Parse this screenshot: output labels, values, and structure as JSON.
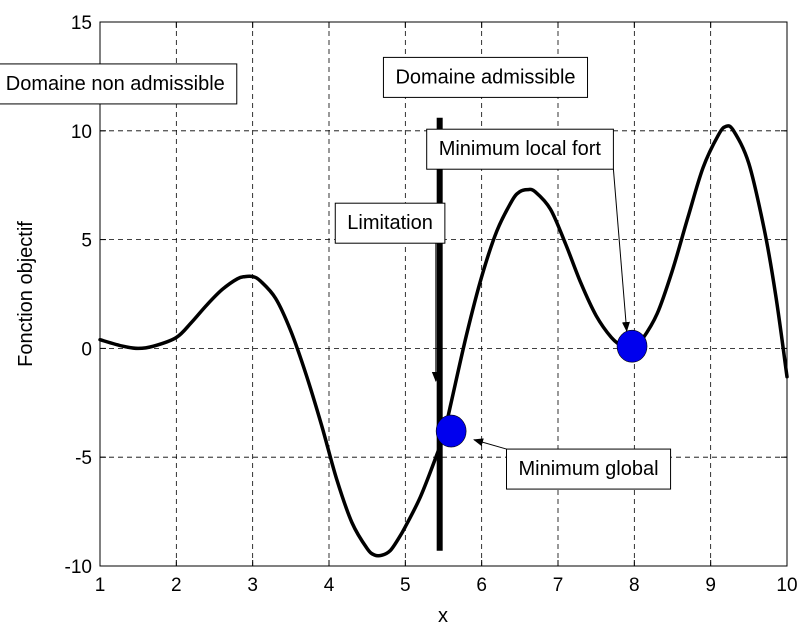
{
  "chart_data": {
    "type": "line",
    "xlabel": "x",
    "ylabel": "Fonction objectif",
    "xlim": [
      1,
      10
    ],
    "ylim": [
      -10,
      15
    ],
    "xticks": [
      1,
      2,
      3,
      4,
      5,
      6,
      7,
      8,
      9,
      10
    ],
    "yticks": [
      -10,
      -5,
      0,
      5,
      10,
      15
    ],
    "grid": true,
    "series": [
      {
        "x": [
          1.0,
          1.3,
          1.5,
          1.7,
          2.0,
          2.2,
          2.4,
          2.6,
          2.8,
          2.9,
          3.0,
          3.1,
          3.3,
          3.5,
          3.7,
          3.9,
          4.1,
          4.3,
          4.5,
          4.6,
          4.7,
          4.8,
          4.9,
          5.0,
          5.2,
          5.4,
          5.5,
          5.6,
          5.8,
          6.0,
          6.2,
          6.4,
          6.5,
          6.6,
          6.7,
          6.9,
          7.1,
          7.3,
          7.5,
          7.7,
          7.85,
          8.0,
          8.1,
          8.3,
          8.5,
          8.7,
          8.9,
          9.1,
          9.2,
          9.3,
          9.5,
          9.7,
          9.85,
          10.0
        ],
        "y": [
          0.4,
          0.1,
          0.0,
          0.1,
          0.5,
          1.2,
          2.0,
          2.7,
          3.2,
          3.3,
          3.3,
          3.1,
          2.3,
          0.8,
          -1.2,
          -3.5,
          -6.0,
          -8.0,
          -9.2,
          -9.5,
          -9.5,
          -9.3,
          -8.8,
          -8.2,
          -6.8,
          -5.0,
          -4.0,
          -2.5,
          0.6,
          3.3,
          5.4,
          6.8,
          7.2,
          7.3,
          7.2,
          6.4,
          4.8,
          3.0,
          1.5,
          0.5,
          0.1,
          0.1,
          0.4,
          1.6,
          3.6,
          6.0,
          8.3,
          9.8,
          10.2,
          10.0,
          8.5,
          5.5,
          2.5,
          -1.3
        ]
      }
    ],
    "constraint_x": 5.45,
    "constraint_y": [
      -9.3,
      10.6
    ],
    "points": [
      {
        "x": 5.6,
        "y": -3.8
      },
      {
        "x": 7.97,
        "y": 0.1
      }
    ],
    "point_color": "#0000ee",
    "annotations": [
      {
        "text": "Domaine non admissible"
      },
      {
        "text": "Domaine admissible"
      },
      {
        "text": "Minimum local fort",
        "arrow_to": [
          7.9,
          0.8
        ]
      },
      {
        "text": "Limitation",
        "arrow_to": [
          5.4,
          -1.5
        ]
      },
      {
        "text": "Minimum global",
        "arrow_to": [
          5.9,
          -4.2
        ]
      }
    ]
  }
}
